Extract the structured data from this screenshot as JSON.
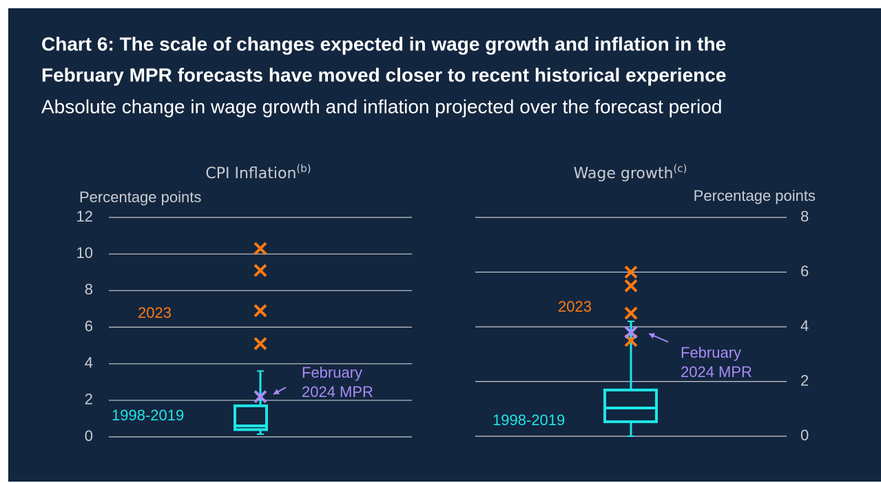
{
  "header": {
    "title_lines": [
      "Chart 6: The scale of changes expected in wage growth and inflation in the",
      "February MPR forecasts have moved closer to recent historical experience"
    ],
    "subtitle": "Absolute change in wage growth and inflation projected over the forecast period"
  },
  "chart_data": [
    {
      "type": "box",
      "title": "CPI Inflation",
      "title_note": "(b)",
      "y_label": "Percentage points",
      "axis_side": "left",
      "ylim": [
        0,
        12
      ],
      "yticks": [
        0,
        2,
        4,
        6,
        8,
        10,
        12
      ],
      "grid": true,
      "box": {
        "name": "1998-2019",
        "color": "#1ee6e6",
        "whisker_low": 0.15,
        "q1": 0.4,
        "median": 0.6,
        "q3": 1.7,
        "whisker_high": 3.6
      },
      "series": [
        {
          "name": "2023",
          "color": "#ff7a12",
          "values": [
            10.3,
            9.1,
            6.9,
            5.1
          ]
        },
        {
          "name_lines": [
            "February",
            "2024 MPR"
          ],
          "color": "#a98bf5",
          "values": [
            2.2
          ]
        }
      ]
    },
    {
      "type": "box",
      "title": "Wage growth",
      "title_note": "(c)",
      "y_label": "Percentage points",
      "axis_side": "right",
      "ylim": [
        0,
        8
      ],
      "yticks": [
        0,
        2,
        4,
        6,
        8
      ],
      "grid": true,
      "box": {
        "name": "1998-2019",
        "color": "#1ee6e6",
        "whisker_low": 0,
        "q1": 0.53,
        "median": 1.03,
        "q3": 1.69,
        "whisker_high": 4.2
      },
      "series": [
        {
          "name": "2023",
          "color": "#ff7a12",
          "values": [
            6.0,
            5.5,
            4.5,
            3.5
          ]
        },
        {
          "name_lines": [
            "February",
            "2024 MPR"
          ],
          "color": "#a98bf5",
          "values": [
            3.8
          ]
        }
      ]
    }
  ]
}
